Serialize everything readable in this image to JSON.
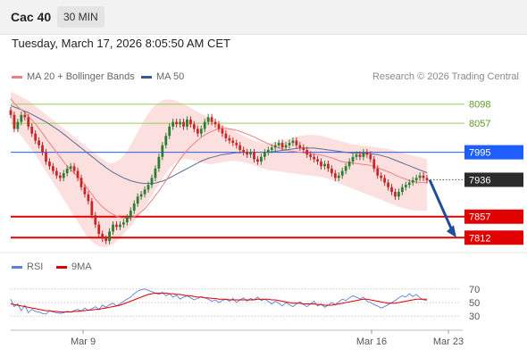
{
  "header": {
    "ticker": "Cac 40",
    "interval": "30 MIN"
  },
  "timestamp": "Tuesday, March 17, 2026 8:05:50 AM CET",
  "legend": {
    "ma_bollinger": "MA 20 + Bollinger Bands",
    "ma50": "MA 50",
    "rsi": "RSI",
    "ma9": "9MA"
  },
  "credit": "Research © 2026 Trading Central",
  "colors": {
    "up_candle": "#2e7d32",
    "down_candle": "#c62828",
    "bollinger_fill": "#fcd9d9",
    "ma20": "#f08080",
    "ma50": "#5a6e96",
    "resistance": "#9acd5a",
    "current_price": "#1e5eff",
    "support": "#e00000",
    "rsi": "#5b7fdc",
    "rsi_ma": "#e00000"
  },
  "chart_data": [
    {
      "type": "candlestick",
      "x_labels": [
        "Mar 9",
        "Mar 16",
        "Mar 23"
      ],
      "ylim": [
        7780,
        8130
      ],
      "levels": [
        {
          "label": "8098",
          "value": 8098,
          "kind": "resistance"
        },
        {
          "label": "8057",
          "value": 8057,
          "kind": "resistance"
        },
        {
          "label": "7995",
          "value": 7995,
          "kind": "pivot"
        },
        {
          "label": "7936",
          "value": 7936,
          "kind": "current"
        },
        {
          "label": "7857",
          "value": 7857,
          "kind": "support"
        },
        {
          "label": "7812",
          "value": 7812,
          "kind": "support"
        }
      ],
      "close": [
        8075,
        8045,
        8060,
        8075,
        8070,
        8050,
        8035,
        8020,
        8010,
        7995,
        7975,
        7965,
        7955,
        7945,
        7940,
        7950,
        7960,
        7965,
        7955,
        7940,
        7920,
        7905,
        7890,
        7860,
        7840,
        7820,
        7810,
        7805,
        7825,
        7840,
        7835,
        7840,
        7845,
        7855,
        7870,
        7885,
        7900,
        7905,
        7915,
        7925,
        7940,
        7960,
        7985,
        8010,
        8030,
        8050,
        8060,
        8055,
        8060,
        8050,
        8065,
        8055,
        8045,
        8035,
        8045,
        8060,
        8070,
        8060,
        8055,
        8045,
        8035,
        8025,
        8020,
        8015,
        8010,
        8000,
        7995,
        7990,
        7995,
        7980,
        7975,
        7985,
        7995,
        8000,
        8005,
        8010,
        8015,
        8005,
        8010,
        8015,
        8020,
        8010,
        8005,
        8000,
        7990,
        7985,
        7980,
        7975,
        7965,
        7970,
        7960,
        7950,
        7940,
        7945,
        7955,
        7965,
        7975,
        7985,
        7990,
        7985,
        7995,
        7990,
        7980,
        7960,
        7945,
        7940,
        7930,
        7920,
        7910,
        7900,
        7910,
        7920,
        7925,
        7930,
        7935,
        7940,
        7945,
        7940,
        7935
      ],
      "ma20": [
        8110,
        8100,
        8092,
        8086,
        8080,
        8072,
        8064,
        8056,
        8046,
        8036,
        8025,
        8015,
        8005,
        7995,
        7985,
        7975,
        7965,
        7958,
        7950,
        7944,
        7935,
        7925,
        7915,
        7905,
        7895,
        7886,
        7878,
        7872,
        7866,
        7862,
        7858,
        7855,
        7854,
        7853,
        7854,
        7857,
        7861,
        7867,
        7874,
        7883,
        7892,
        7902,
        7912,
        7923,
        7934,
        7946,
        7958,
        7969,
        7980,
        7990,
        7999,
        8007,
        8014,
        8021,
        8027,
        8032,
        8036,
        8040,
        8043,
        8045,
        8046,
        8046,
        8045,
        8044,
        8042,
        8040,
        8037,
        8034,
        8031,
        8028,
        8024,
        8020,
        8017,
        8013,
        8010,
        8007,
        8004,
        8002,
        8000,
        7998,
        7997,
        7996,
        7995,
        7994,
        7993,
        7992,
        7991,
        7990,
        7989,
        7987,
        7985,
        7983,
        7980,
        7977,
        7975,
        7974,
        7973,
        7972,
        7971,
        7970,
        7969,
        7968,
        7967,
        7965,
        7962,
        7959,
        7956,
        7953,
        7950,
        7946,
        7943,
        7940,
        7937,
        7934,
        7932,
        7931,
        7930,
        7930,
        7930
      ],
      "ma50": [
        8095,
        8092,
        8089,
        8086,
        8083,
        8080,
        8076,
        8072,
        8068,
        8064,
        8060,
        8055,
        8050,
        8045,
        8040,
        8034,
        8028,
        8022,
        8016,
        8010,
        8004,
        7998,
        7992,
        7986,
        7980,
        7974,
        7968,
        7962,
        7957,
        7952,
        7948,
        7944,
        7940,
        7937,
        7934,
        7932,
        7930,
        7929,
        7928,
        7928,
        7928,
        7929,
        7931,
        7933,
        7936,
        7940,
        7944,
        7948,
        7952,
        7956,
        7960,
        7964,
        7968,
        7972,
        7976,
        7979,
        7982,
        7984,
        7986,
        7988,
        7990,
        7991,
        7992,
        7993,
        7994,
        7994,
        7995,
        7995,
        7995,
        7995,
        7995,
        7995,
        7995,
        7996,
        7996,
        7997,
        7998,
        7999,
        8000,
        8001,
        8002,
        8003,
        8004,
        8004,
        8004,
        8004,
        8004,
        8003,
        8002,
        8001,
        8000,
        7999,
        7998,
        7997,
        7996,
        7995,
        7994,
        7993,
        7993,
        7993,
        7993,
        7993,
        7992,
        7991,
        7990,
        7988,
        7986,
        7984,
        7981,
        7978,
        7975,
        7972,
        7969,
        7966,
        7963,
        7960,
        7957,
        7954,
        7951
      ],
      "bollinger_upper": [
        8125,
        8122,
        8118,
        8114,
        8110,
        8106,
        8100,
        8094,
        8088,
        8082,
        8076,
        8070,
        8064,
        8058,
        8052,
        8046,
        8040,
        8034,
        8028,
        8022,
        8016,
        8010,
        8004,
        7998,
        7992,
        7986,
        7980,
        7975,
        7972,
        7972,
        7975,
        7980,
        7988,
        7998,
        8010,
        8024,
        8038,
        8052,
        8066,
        8078,
        8088,
        8096,
        8102,
        8106,
        8108,
        8108,
        8107,
        8105,
        8102,
        8098,
        8094,
        8090,
        8086,
        8082,
        8078,
        8074,
        8070,
        8066,
        8062,
        8058,
        8054,
        8050,
        8046,
        8042,
        8038,
        8034,
        8030,
        8026,
        8023,
        8020,
        8018,
        8016,
        8015,
        8015,
        8016,
        8017,
        8018,
        8020,
        8022,
        8024,
        8026,
        8028,
        8030,
        8031,
        8032,
        8032,
        8032,
        8031,
        8030,
        8028,
        8026,
        8024,
        8022,
        8020,
        8018,
        8016,
        8014,
        8012,
        8011,
        8010,
        8009,
        8008,
        8007,
        8006,
        8005,
        8004,
        8003,
        8002,
        8000,
        7998,
        7996,
        7994,
        7992,
        7990,
        7988,
        7986,
        7984,
        7982,
        7980
      ],
      "bollinger_lower": [
        8060,
        8050,
        8040,
        8030,
        8020,
        8010,
        8000,
        7990,
        7978,
        7966,
        7954,
        7942,
        7930,
        7918,
        7906,
        7894,
        7882,
        7870,
        7858,
        7846,
        7834,
        7822,
        7812,
        7804,
        7798,
        7794,
        7792,
        7792,
        7794,
        7798,
        7804,
        7812,
        7820,
        7828,
        7836,
        7846,
        7856,
        7866,
        7878,
        7890,
        7902,
        7914,
        7926,
        7938,
        7950,
        7960,
        7968,
        7974,
        7978,
        7980,
        7980,
        7979,
        7977,
        7975,
        7973,
        7971,
        7970,
        7970,
        7971,
        7972,
        7974,
        7975,
        7976,
        7976,
        7976,
        7975,
        7974,
        7972,
        7970,
        7967,
        7964,
        7961,
        7959,
        7957,
        7956,
        7955,
        7954,
        7953,
        7952,
        7951,
        7950,
        7949,
        7948,
        7947,
        7946,
        7945,
        7944,
        7943,
        7942,
        7940,
        7938,
        7935,
        7932,
        7929,
        7926,
        7923,
        7920,
        7917,
        7914,
        7911,
        7908,
        7905,
        7902,
        7899,
        7896,
        7893,
        7890,
        7887,
        7884,
        7881,
        7878,
        7876,
        7874,
        7872,
        7871,
        7870,
        7870,
        7870,
        7870
      ],
      "forecast": {
        "from": 7936,
        "to": 7812
      }
    },
    {
      "type": "line",
      "name": "RSI",
      "yticks": [
        30,
        50,
        70
      ],
      "ylim": [
        20,
        80
      ],
      "series": [
        {
          "name": "RSI",
          "values": [
            55,
            44,
            48,
            38,
            46,
            35,
            40,
            37,
            36,
            34,
            33,
            38,
            36,
            35,
            34,
            35,
            37,
            36,
            38,
            40,
            37,
            42,
            38,
            41,
            44,
            40,
            46,
            43,
            47,
            49,
            45,
            48,
            52,
            55,
            58,
            63,
            67,
            69,
            70,
            68,
            66,
            64,
            62,
            65,
            60,
            63,
            58,
            61,
            55,
            58,
            60,
            57,
            54,
            56,
            59,
            57,
            55,
            52,
            54,
            50,
            53,
            55,
            52,
            56,
            50,
            54,
            57,
            52,
            56,
            54,
            58,
            53,
            55,
            52,
            48,
            52,
            49,
            45,
            50,
            47,
            44,
            48,
            51,
            47,
            44,
            48,
            52,
            45,
            48,
            43,
            46,
            50,
            47,
            51,
            55,
            53,
            57,
            60,
            58,
            55,
            58,
            52,
            50,
            47,
            45,
            42,
            44,
            47,
            50,
            53,
            57,
            60,
            58,
            63,
            59,
            62,
            57,
            54,
            53
          ]
        },
        {
          "name": "9MA",
          "values": [
            48,
            47,
            46,
            45,
            44,
            43,
            42,
            41,
            40,
            39,
            38,
            38,
            37,
            37,
            36,
            36,
            36,
            36,
            37,
            37,
            38,
            38,
            39,
            39,
            40,
            40,
            41,
            42,
            43,
            44,
            45,
            46,
            48,
            50,
            52,
            54,
            56,
            58,
            60,
            62,
            63,
            64,
            64,
            64,
            64,
            63,
            63,
            62,
            62,
            61,
            60,
            60,
            59,
            58,
            58,
            57,
            57,
            56,
            56,
            55,
            55,
            55,
            54,
            54,
            54,
            54,
            54,
            54,
            54,
            54,
            55,
            55,
            55,
            55,
            54,
            54,
            53,
            52,
            51,
            50,
            49,
            49,
            49,
            48,
            48,
            48,
            48,
            47,
            47,
            46,
            46,
            46,
            47,
            48,
            49,
            50,
            51,
            52,
            53,
            54,
            55,
            55,
            54,
            53,
            52,
            51,
            50,
            49,
            49,
            49,
            50,
            51,
            52,
            53,
            54,
            55,
            55,
            55,
            55
          ]
        }
      ]
    }
  ]
}
